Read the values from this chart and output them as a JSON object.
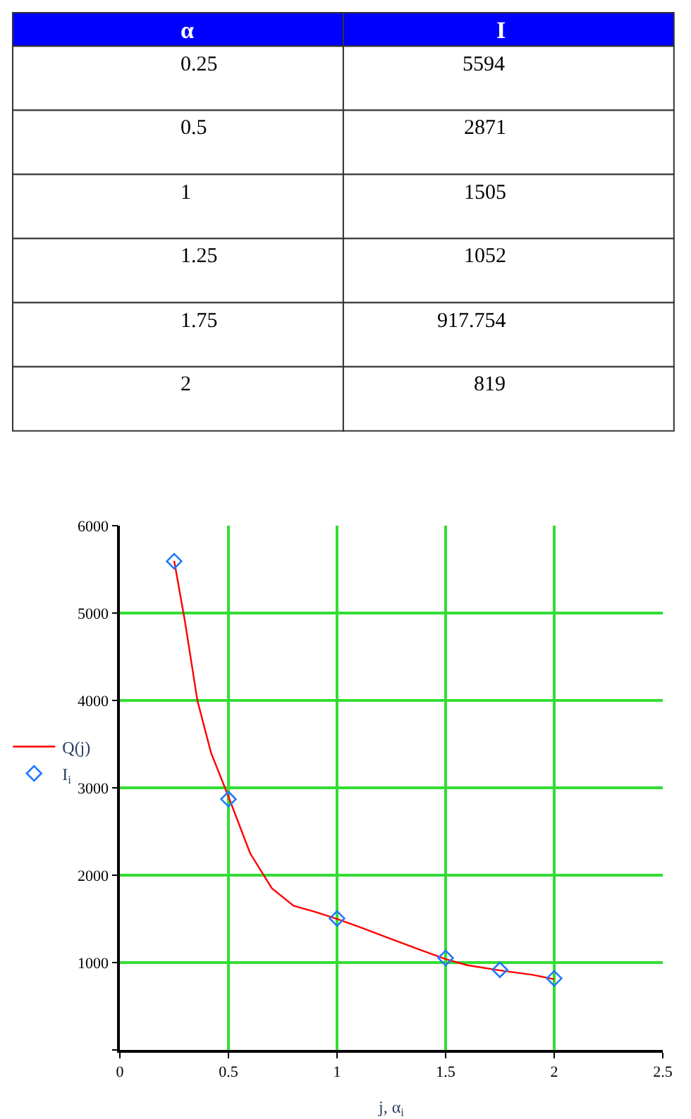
{
  "chart_data": [
    {
      "type": "other",
      "color": "#0000ff",
      "annotations": [
        "α",
        "I",
        "0.25",
        "5594",
        "0.5",
        "2871",
        "1",
        "1505",
        "1.25",
        "1052",
        "1.75",
        "917.754",
        "2",
        "819"
      ]
    },
    {
      "type": "line",
      "xlabel": "j, α$_{i}$",
      "xlim": [
        0,
        2.5
      ],
      "xticks": [
        0,
        0.5,
        1,
        1.5,
        2,
        2.5
      ],
      "ylim": [
        0,
        6000
      ],
      "yticks": [
        {
          "value": 0,
          "label": null
        },
        1000,
        2000,
        3000,
        4000,
        5000,
        6000
      ],
      "grid": true,
      "legend": "left",
      "series": [
        {
          "name": "Q(j)",
          "type": "line",
          "color": "#ff0000",
          "marker": "none",
          "x": [
            0.25,
            0.3,
            0.357,
            0.42,
            0.5,
            0.6,
            0.7,
            0.8,
            0.9,
            1.0,
            1.1,
            1.25,
            1.4,
            1.5,
            1.6,
            1.75,
            1.9,
            2.0
          ],
          "values": [
            5600,
            4900,
            4000,
            3400,
            2900,
            2250,
            1850,
            1650,
            1580,
            1500,
            1410,
            1270,
            1130,
            1040,
            970,
            910,
            860,
            810
          ]
        },
        {
          "name": "I$_{i}$",
          "type": "scatter",
          "color": "#1f78ff",
          "marker": "diamond",
          "x": [
            0.25,
            0.5,
            1,
            1.5,
            1.75,
            2
          ],
          "values": [
            5594,
            2871,
            1505,
            1052,
            917.754,
            819
          ]
        }
      ]
    }
  ]
}
